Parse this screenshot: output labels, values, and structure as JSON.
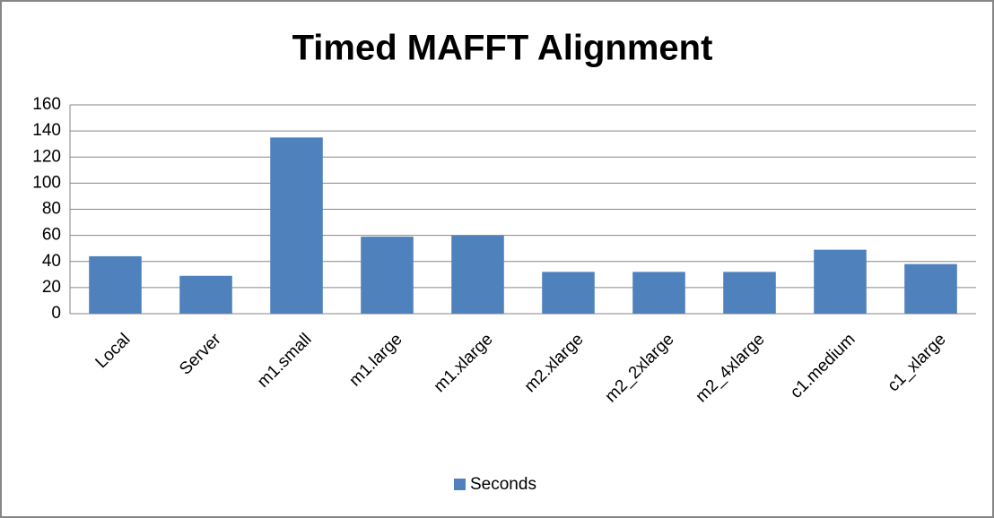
{
  "chart_data": {
    "type": "bar",
    "title": "Timed MAFFT Alignment",
    "categories": [
      "Local",
      "Server",
      "m1.small",
      "m1.large",
      "m1.xlarge",
      "m2.xlarge",
      "m2_2xlarge",
      "m2_4xlarge",
      "c1.medium",
      "c1_xlarge"
    ],
    "series": [
      {
        "name": "Seconds",
        "color": "#4f81bd",
        "values": [
          44,
          29,
          135,
          59,
          60,
          32,
          32,
          32,
          49,
          38
        ]
      }
    ],
    "ylim": [
      0,
      160
    ],
    "yticks": [
      0,
      20,
      40,
      60,
      80,
      100,
      120,
      140,
      160
    ],
    "grid": true,
    "legend": "bottom"
  }
}
